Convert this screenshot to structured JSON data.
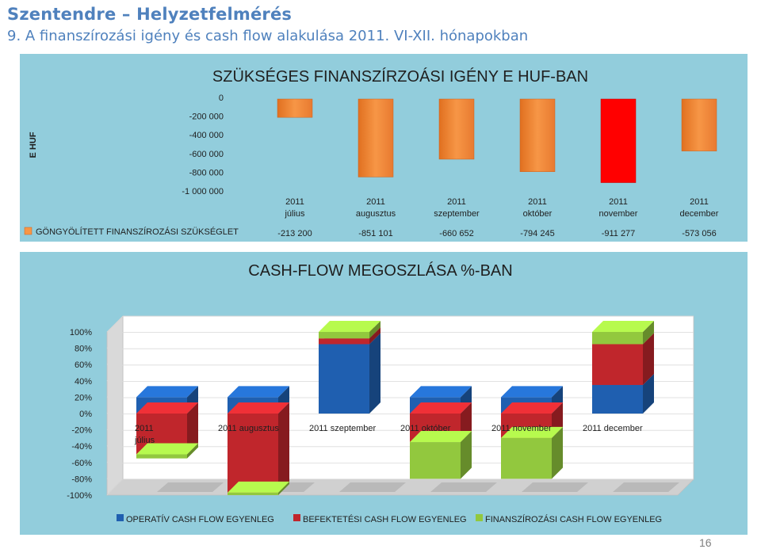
{
  "header": {
    "title": "Szentendre – Helyzetfelmérés",
    "subtitle": "9. A finanszírozási igény és cash flow alakulása 2011. VI-XII. hónapokban"
  },
  "page_number": "16",
  "colors": {
    "bar_orange": "#f79646",
    "bar_red": "#ff0000",
    "operativ": "#1f5fb0",
    "befektetesi": "#c0262c",
    "finanszirozasi": "#92c83e",
    "panel": "#92cddc"
  },
  "chart_data": [
    {
      "type": "bar",
      "title": "SZÜKSÉGES FINANSZÍRZOÁSI IGÉNY E HUF-BAN",
      "ylabel": "E HUF",
      "ylim": [
        -1000000,
        0
      ],
      "yticks": [
        "0",
        "-200 000",
        "-400 000",
        "-600 000",
        "-800 000",
        "-1 000 000"
      ],
      "ytick_values": [
        0,
        -200000,
        -400000,
        -600000,
        -800000,
        -1000000
      ],
      "categories": [
        "2011 július",
        "2011 augusztus",
        "2011 szeptember",
        "2011 október",
        "2011 november",
        "2011 december"
      ],
      "series": [
        {
          "name": "GÖNGYÖLÍTETT FINANSZÍROZÁSI SZÜKSÉGLET",
          "values": [
            -213200,
            -851101,
            -660652,
            -794245,
            -911277,
            -573056
          ],
          "labels": [
            "-213 200",
            "-851 101",
            "-660 652",
            "-794 245",
            "-911 277",
            "-573 056"
          ]
        }
      ],
      "highlight_index": 4,
      "data_table": true
    },
    {
      "type": "bar",
      "stacked": true,
      "title": "CASH-FLOW MEGOSZLÁSA %-BAN",
      "ylim": [
        -100,
        100
      ],
      "yticks": [
        "100%",
        "80%",
        "60%",
        "40%",
        "20%",
        "0%",
        "-20%",
        "-40%",
        "-60%",
        "-80%",
        "-100%"
      ],
      "ytick_values": [
        100,
        80,
        60,
        40,
        20,
        0,
        -20,
        -40,
        -60,
        -80,
        -100
      ],
      "categories": [
        "2011 július",
        "2011 augusztus",
        "2011 szeptember",
        "2011 október",
        "2011 november",
        "2011 december"
      ],
      "legend_position": "bottom",
      "series": [
        {
          "name": "OPERATÍV CASH FLOW EGYENLEG",
          "values": [
            20,
            20,
            85,
            20,
            20,
            35
          ]
        },
        {
          "name": "BEFEKTETÉSI CASH FLOW EGYENLEG",
          "values": [
            -50,
            -97,
            7,
            -35,
            -30,
            50
          ]
        },
        {
          "name": "FINANSZÍROZÁSI CASH FLOW EGYENLEG",
          "values": [
            -5,
            -3,
            8,
            -45,
            -50,
            15
          ]
        }
      ]
    }
  ]
}
